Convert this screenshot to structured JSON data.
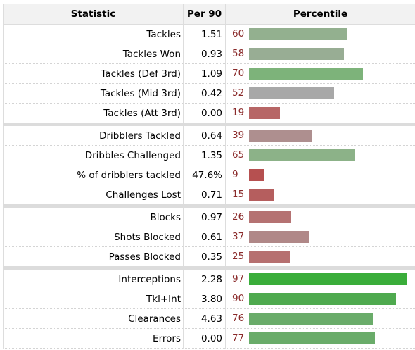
{
  "header": {
    "statistic_label": "Statistic",
    "per90_label": "Per 90",
    "percentile_label": "Percentile"
  },
  "groups": [
    {
      "rows": [
        {
          "stat": "Tackles",
          "per90": "1.51",
          "percentile": 60,
          "bar_color": "#93b08f"
        },
        {
          "stat": "Tackles Won",
          "per90": "0.93",
          "percentile": 58,
          "bar_color": "#98ad94"
        },
        {
          "stat": "Tackles (Def 3rd)",
          "per90": "1.09",
          "percentile": 70,
          "bar_color": "#7db37a"
        },
        {
          "stat": "Tackles (Mid 3rd)",
          "per90": "0.42",
          "percentile": 52,
          "bar_color": "#a8a8a8"
        },
        {
          "stat": "Tackles (Att 3rd)",
          "per90": "0.00",
          "percentile": 19,
          "bar_color": "#b76666"
        }
      ]
    },
    {
      "rows": [
        {
          "stat": "Dribblers Tackled",
          "per90": "0.64",
          "percentile": 39,
          "bar_color": "#ae8f8f"
        },
        {
          "stat": "Dribbles Challenged",
          "per90": "1.35",
          "percentile": 65,
          "bar_color": "#8cb288"
        },
        {
          "stat": "% of dribblers tackled",
          "per90": "47.6%",
          "percentile": 9,
          "bar_color": "#b65050"
        },
        {
          "stat": "Challenges Lost",
          "per90": "0.71",
          "percentile": 15,
          "bar_color": "#b55e5e"
        }
      ]
    },
    {
      "rows": [
        {
          "stat": "Blocks",
          "per90": "0.97",
          "percentile": 26,
          "bar_color": "#b57272"
        },
        {
          "stat": "Shots Blocked",
          "per90": "0.61",
          "percentile": 37,
          "bar_color": "#b08888"
        },
        {
          "stat": "Passes Blocked",
          "per90": "0.35",
          "percentile": 25,
          "bar_color": "#b67070"
        }
      ]
    },
    {
      "rows": [
        {
          "stat": "Interceptions",
          "per90": "2.28",
          "percentile": 97,
          "bar_color": "#3aad3a"
        },
        {
          "stat": "Tkl+Int",
          "per90": "3.80",
          "percentile": 90,
          "bar_color": "#4faa4f"
        },
        {
          "stat": "Clearances",
          "per90": "4.63",
          "percentile": 76,
          "bar_color": "#6aac6a"
        },
        {
          "stat": "Errors",
          "per90": "0.00",
          "percentile": 77,
          "bar_color": "#6aac6a"
        }
      ]
    }
  ]
}
